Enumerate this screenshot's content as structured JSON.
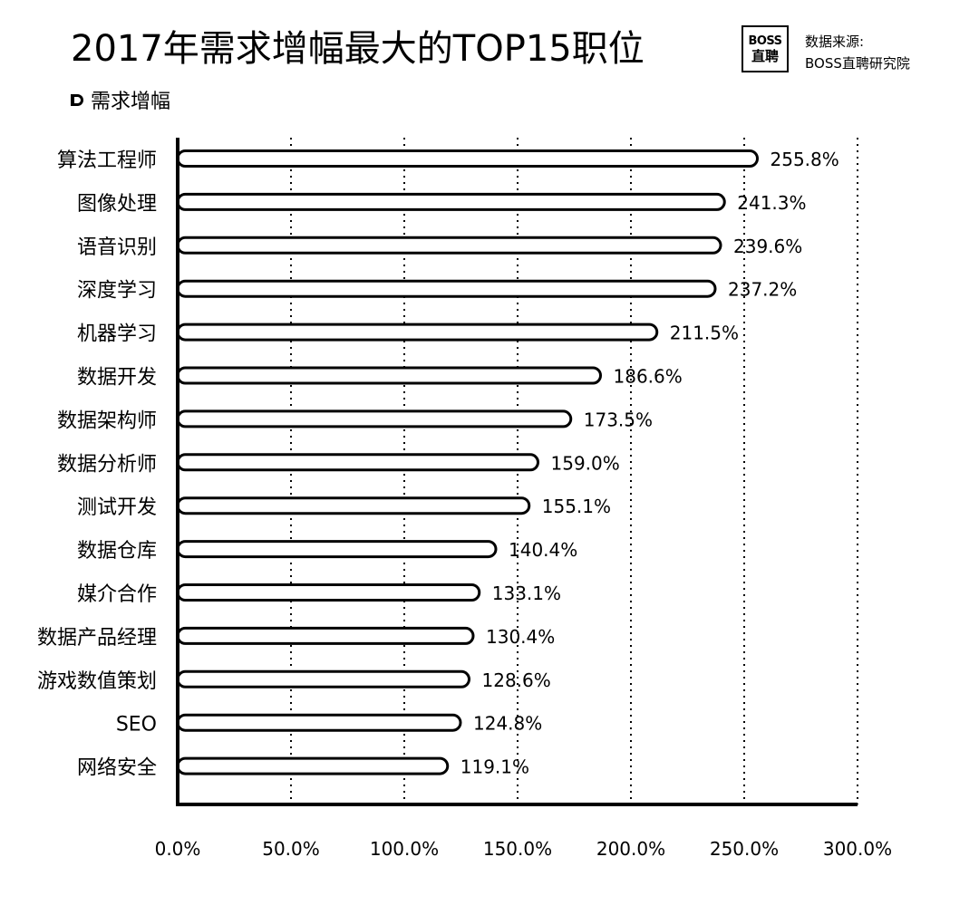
{
  "header": {
    "title": "2017年需求增幅最大的TOP15职位",
    "source_line1": "数据来源:",
    "source_line2": "BOSS直聘研究院",
    "logo_top": "BOSS",
    "logo_bottom": "直聘",
    "legend_label": "需求增幅"
  },
  "chart_data": {
    "type": "bar",
    "orientation": "horizontal",
    "title": "2017年需求增幅最大的TOP15职位",
    "xlabel": "",
    "ylabel": "",
    "xlim": [
      0,
      300
    ],
    "xticks": [
      "0.0%",
      "50.0%",
      "100.0%",
      "150.0%",
      "200.0%",
      "250.0%",
      "300.0%"
    ],
    "grid": "vertical dotted",
    "legend_position": "top-left",
    "series": [
      {
        "name": "需求增幅",
        "categories": [
          "算法工程师",
          "图像处理",
          "语音识别",
          "深度学习",
          "机器学习",
          "数据开发",
          "数据架构师",
          "数据分析师",
          "测试开发",
          "数据仓库",
          "媒介合作",
          "数据产品经理",
          "游戏数值策划",
          "SEO",
          "网络安全"
        ],
        "values": [
          255.8,
          241.3,
          239.6,
          237.2,
          211.5,
          186.6,
          173.5,
          159.0,
          155.1,
          140.4,
          133.1,
          130.4,
          128.6,
          124.8,
          119.1
        ],
        "labels": [
          "255.8%",
          "241.3%",
          "239.6%",
          "237.2%",
          "211.5%",
          "186.6%",
          "173.5%",
          "159.0%",
          "155.1%",
          "140.4%",
          "133.1%",
          "130.4%",
          "128.6%",
          "124.8%",
          "119.1%"
        ]
      }
    ],
    "colors": {
      "bar_fill": "#ffffff",
      "bar_stroke": "#000000",
      "axis": "#000000",
      "grid": "#000000"
    }
  }
}
